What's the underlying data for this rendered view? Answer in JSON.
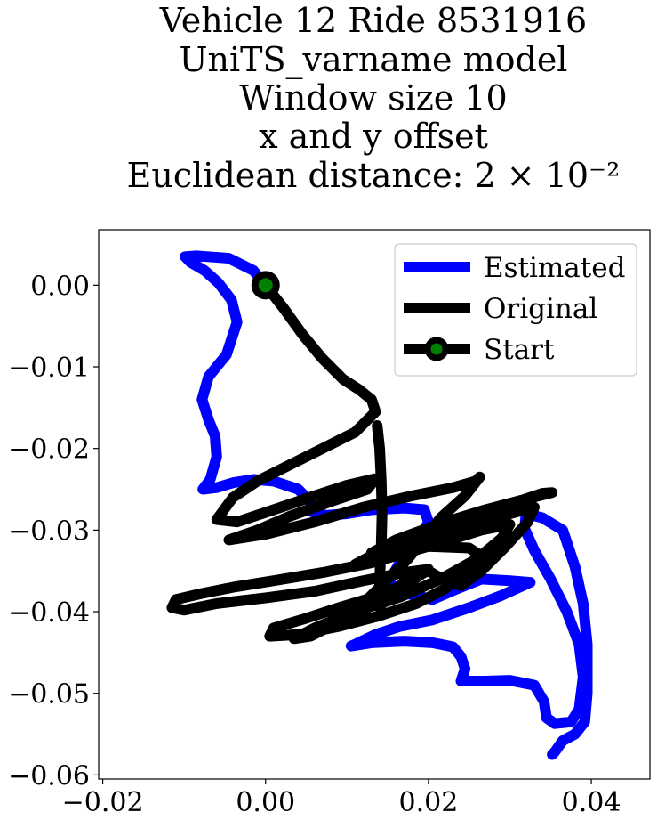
{
  "chart_data": {
    "type": "line",
    "title_lines": [
      "Vehicle 12 Ride 8531916",
      "UniTS_varname model",
      "Window size 10",
      "x and y offset",
      "Euclidean distance: 2 × 10⁻²"
    ],
    "xlim": [
      -0.0205,
      0.0472
    ],
    "ylim": [
      -0.0605,
      0.0068
    ],
    "xticks": [
      -0.02,
      0.0,
      0.02,
      0.04
    ],
    "xtick_labels": [
      "−0.02",
      "0.00",
      "0.02",
      "0.04"
    ],
    "yticks": [
      0.0,
      -0.01,
      -0.02,
      -0.03,
      -0.04,
      -0.05,
      -0.06
    ],
    "ytick_labels": [
      "0.00",
      "−0.01",
      "−0.02",
      "−0.03",
      "−0.04",
      "−0.05",
      "−0.06"
    ],
    "grid": false,
    "legend_position": "top-right",
    "series": [
      {
        "name": "Estimated",
        "color": "#0000ff",
        "points": [
          [
            0.0,
            0.0
          ],
          [
            -0.0015,
            0.0018
          ],
          [
            -0.0045,
            0.0033
          ],
          [
            -0.0085,
            0.0036
          ],
          [
            -0.0099,
            0.0035
          ],
          [
            -0.0092,
            0.0028
          ],
          [
            -0.0075,
            0.0018
          ],
          [
            -0.0058,
            0.0003
          ],
          [
            -0.0042,
            -0.0018
          ],
          [
            -0.0035,
            -0.0045
          ],
          [
            -0.0048,
            -0.0085
          ],
          [
            -0.007,
            -0.0112
          ],
          [
            -0.0078,
            -0.014
          ],
          [
            -0.007,
            -0.0165
          ],
          [
            -0.0062,
            -0.0185
          ],
          [
            -0.006,
            -0.021
          ],
          [
            -0.0068,
            -0.0238
          ],
          [
            -0.0077,
            -0.025
          ],
          [
            -0.006,
            -0.0248
          ],
          [
            -0.004,
            -0.0242
          ],
          [
            -0.0015,
            -0.0238
          ],
          [
            0.001,
            -0.024
          ],
          [
            0.004,
            -0.025
          ],
          [
            0.0055,
            -0.0265
          ],
          [
            0.0058,
            -0.0278
          ],
          [
            0.0075,
            -0.0282
          ],
          [
            0.01,
            -0.028
          ],
          [
            0.013,
            -0.0275
          ],
          [
            0.017,
            -0.0273
          ],
          [
            0.0195,
            -0.0275
          ],
          [
            0.02,
            -0.029
          ],
          [
            0.019,
            -0.031
          ],
          [
            0.0165,
            -0.034
          ],
          [
            0.015,
            -0.0365
          ],
          [
            0.0175,
            -0.0378
          ],
          [
            0.0205,
            -0.0385
          ],
          [
            0.0235,
            -0.0372
          ],
          [
            0.0265,
            -0.036
          ],
          [
            0.03,
            -0.0362
          ],
          [
            0.0325,
            -0.0364
          ],
          [
            0.029,
            -0.038
          ],
          [
            0.025,
            -0.0395
          ],
          [
            0.0205,
            -0.041
          ],
          [
            0.0165,
            -0.0418
          ],
          [
            0.0135,
            -0.0428
          ],
          [
            0.011,
            -0.044
          ],
          [
            0.0105,
            -0.0442
          ],
          [
            0.013,
            -0.0438
          ],
          [
            0.017,
            -0.0436
          ],
          [
            0.0205,
            -0.0438
          ],
          [
            0.023,
            -0.0443
          ],
          [
            0.024,
            -0.0455
          ],
          [
            0.0245,
            -0.047
          ],
          [
            0.024,
            -0.0485
          ],
          [
            0.027,
            -0.0485
          ],
          [
            0.03,
            -0.0484
          ],
          [
            0.033,
            -0.049
          ],
          [
            0.0342,
            -0.051
          ],
          [
            0.0345,
            -0.053
          ],
          [
            0.0355,
            -0.0537
          ],
          [
            0.0375,
            -0.0535
          ],
          [
            0.0385,
            -0.052
          ],
          [
            0.039,
            -0.048
          ],
          [
            0.0385,
            -0.044
          ],
          [
            0.037,
            -0.04
          ],
          [
            0.035,
            -0.036
          ],
          [
            0.033,
            -0.0325
          ],
          [
            0.0318,
            -0.0298
          ],
          [
            0.032,
            -0.028
          ],
          [
            0.034,
            -0.0285
          ],
          [
            0.0365,
            -0.03
          ],
          [
            0.038,
            -0.0345
          ],
          [
            0.039,
            -0.039
          ],
          [
            0.0395,
            -0.044
          ],
          [
            0.0395,
            -0.05
          ],
          [
            0.0392,
            -0.0535
          ],
          [
            0.038,
            -0.055
          ],
          [
            0.0365,
            -0.0558
          ],
          [
            0.0355,
            -0.0572
          ],
          [
            0.0352,
            -0.0575
          ]
        ]
      },
      {
        "name": "Original",
        "color": "#000000",
        "points": [
          [
            0.0,
            0.0
          ],
          [
            0.0022,
            -0.0028
          ],
          [
            0.0045,
            -0.006
          ],
          [
            0.007,
            -0.009
          ],
          [
            0.0095,
            -0.0115
          ],
          [
            0.0115,
            -0.0128
          ],
          [
            0.013,
            -0.014
          ],
          [
            0.0135,
            -0.0155
          ],
          [
            0.011,
            -0.018
          ],
          [
            0.007,
            -0.02
          ],
          [
            0.003,
            -0.022
          ],
          [
            -0.001,
            -0.024
          ],
          [
            -0.004,
            -0.026
          ],
          [
            -0.006,
            -0.0287
          ],
          [
            -0.0035,
            -0.029
          ],
          [
            0.001,
            -0.0275
          ],
          [
            0.006,
            -0.0258
          ],
          [
            0.01,
            -0.0245
          ],
          [
            0.0135,
            -0.0237
          ],
          [
            0.0125,
            -0.025
          ],
          [
            0.008,
            -0.0265
          ],
          [
            0.003,
            -0.0283
          ],
          [
            -0.001,
            -0.03
          ],
          [
            -0.0045,
            -0.0312
          ],
          [
            0.0,
            -0.0305
          ],
          [
            0.006,
            -0.029
          ],
          [
            0.012,
            -0.0272
          ],
          [
            0.018,
            -0.0258
          ],
          [
            0.023,
            -0.0248
          ],
          [
            0.0258,
            -0.024
          ],
          [
            0.0263,
            -0.0235
          ],
          [
            0.0245,
            -0.0258
          ],
          [
            0.0215,
            -0.0285
          ],
          [
            0.0195,
            -0.031
          ],
          [
            0.0175,
            -0.0335
          ],
          [
            0.015,
            -0.036
          ],
          [
            0.012,
            -0.039
          ],
          [
            0.0085,
            -0.0415
          ],
          [
            0.0055,
            -0.043
          ],
          [
            0.0035,
            -0.0433
          ],
          [
            0.006,
            -0.042
          ],
          [
            0.011,
            -0.04
          ],
          [
            0.0165,
            -0.0382
          ],
          [
            0.0215,
            -0.036
          ],
          [
            0.026,
            -0.0335
          ],
          [
            0.029,
            -0.031
          ],
          [
            0.03,
            -0.0293
          ],
          [
            0.0265,
            -0.03
          ],
          [
            0.02,
            -0.032
          ],
          [
            0.013,
            -0.034
          ],
          [
            0.007,
            -0.0352
          ],
          [
            0.001,
            -0.0362
          ],
          [
            -0.004,
            -0.037
          ],
          [
            -0.008,
            -0.0378
          ],
          [
            -0.011,
            -0.0385
          ],
          [
            -0.0115,
            -0.0395
          ],
          [
            -0.01,
            -0.0398
          ],
          [
            -0.006,
            -0.039
          ],
          [
            0.0,
            -0.0383
          ],
          [
            0.006,
            -0.0375
          ],
          [
            0.012,
            -0.0362
          ],
          [
            0.017,
            -0.0352
          ],
          [
            0.02,
            -0.0348
          ],
          [
            0.018,
            -0.0362
          ],
          [
            0.014,
            -0.038
          ],
          [
            0.009,
            -0.0395
          ],
          [
            0.005,
            -0.0408
          ],
          [
            0.001,
            -0.042
          ],
          [
            0.0005,
            -0.043
          ],
          [
            0.004,
            -0.0428
          ],
          [
            0.009,
            -0.0418
          ],
          [
            0.014,
            -0.0405
          ],
          [
            0.0185,
            -0.039
          ],
          [
            0.022,
            -0.0372
          ],
          [
            0.025,
            -0.035
          ],
          [
            0.027,
            -0.0335
          ],
          [
            0.025,
            -0.0322
          ],
          [
            0.02,
            -0.032
          ],
          [
            0.015,
            -0.033
          ],
          [
            0.011,
            -0.0342
          ],
          [
            0.014,
            -0.0326
          ],
          [
            0.02,
            -0.0306
          ],
          [
            0.026,
            -0.0285
          ],
          [
            0.031,
            -0.0265
          ],
          [
            0.034,
            -0.0255
          ],
          [
            0.0352,
            -0.0254
          ],
          [
            0.032,
            -0.0262
          ],
          [
            0.027,
            -0.0275
          ],
          [
            0.0215,
            -0.0292
          ],
          [
            0.016,
            -0.0312
          ],
          [
            0.013,
            -0.0328
          ],
          [
            0.016,
            -0.0322
          ],
          [
            0.021,
            -0.0305
          ],
          [
            0.026,
            -0.029
          ],
          [
            0.03,
            -0.028
          ],
          [
            0.033,
            -0.0272
          ],
          [
            0.0322,
            -0.029
          ],
          [
            0.0295,
            -0.032
          ],
          [
            0.0265,
            -0.035
          ],
          [
            0.024,
            -0.0368
          ],
          [
            0.022,
            -0.0362
          ],
          [
            0.02,
            -0.035
          ],
          [
            0.0175,
            -0.036
          ],
          [
            0.015,
            -0.038
          ],
          [
            0.014,
            -0.0395
          ],
          [
            0.014,
            -0.036
          ],
          [
            0.0142,
            -0.032
          ],
          [
            0.0143,
            -0.028
          ],
          [
            0.0142,
            -0.024
          ],
          [
            0.014,
            -0.02
          ],
          [
            0.0137,
            -0.0172
          ]
        ]
      },
      {
        "name": "Start",
        "color": "#000000",
        "marker_face": "#008000",
        "points": [
          [
            0.0,
            0.0
          ]
        ]
      }
    ]
  }
}
